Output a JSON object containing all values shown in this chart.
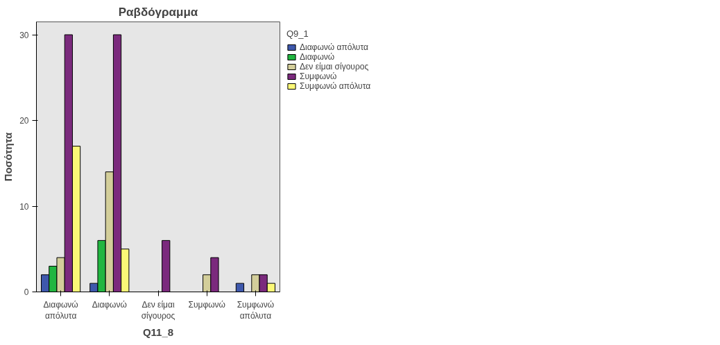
{
  "chart_data": {
    "type": "bar",
    "title": "Ραβδόγραμμα",
    "xlabel": "Q11_8",
    "ylabel": "Ποσότητα",
    "legend_title": "Q9_1",
    "legend": "right",
    "categories": [
      "Διαφωνώ απόλυτα",
      "Διαφωνώ",
      "Δεν είμαι σίγουρος",
      "Συμφωνώ",
      "Συμφωνώ απόλυτα"
    ],
    "ylim": [
      0,
      31.5
    ],
    "yticks": [
      0,
      10,
      20,
      30
    ],
    "series": [
      {
        "name": "Διαφωνώ απόλυτα",
        "color": "#3e58ac",
        "values": [
          2,
          1,
          null,
          null,
          1
        ]
      },
      {
        "name": "Διαφωνώ",
        "color": "#21b640",
        "values": [
          3,
          6,
          null,
          null,
          null
        ]
      },
      {
        "name": "Δεν είμαι σίγουρος",
        "color": "#d3ce9a",
        "values": [
          4,
          14,
          null,
          2,
          2
        ]
      },
      {
        "name": "Συμφωνώ",
        "color": "#7b2a7d",
        "values": [
          30,
          30,
          6,
          4,
          2
        ]
      },
      {
        "name": "Συμφωνώ απόλυτα",
        "color": "#fbf877",
        "values": [
          17,
          5,
          null,
          null,
          1
        ]
      }
    ]
  }
}
